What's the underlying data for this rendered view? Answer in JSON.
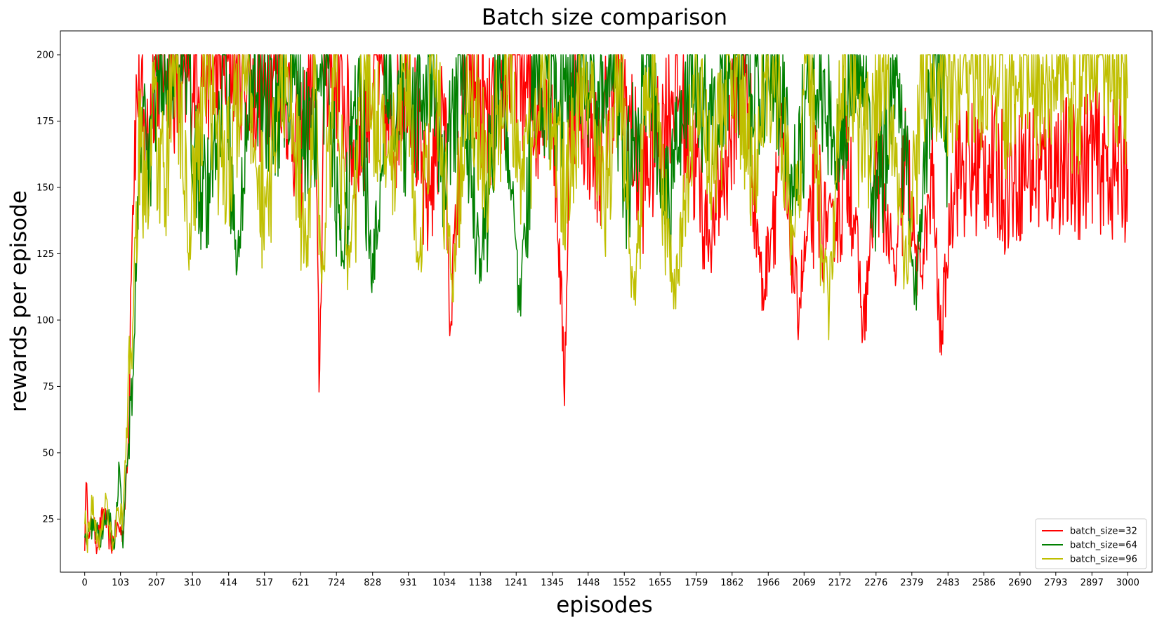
{
  "chart_data": {
    "type": "line",
    "title": "Batch size comparison",
    "xlabel": "episodes",
    "ylabel": "rewards per episode",
    "xlim": [
      -70,
      3070
    ],
    "ylim": [
      5,
      209
    ],
    "x_ticks": [
      0,
      103,
      207,
      310,
      414,
      517,
      621,
      724,
      828,
      931,
      1034,
      1138,
      1241,
      1345,
      1448,
      1552,
      1655,
      1759,
      1862,
      1966,
      2069,
      2172,
      2276,
      2379,
      2483,
      2586,
      2690,
      2793,
      2897,
      3000
    ],
    "y_ticks": [
      25,
      50,
      75,
      100,
      125,
      150,
      175,
      200
    ],
    "grid": false,
    "legend_position": "lower right",
    "legend": [
      "batch_size=32",
      "batch_size=64",
      "batch_size=96"
    ],
    "series": [
      {
        "name": "batch_size=32",
        "color": "#ff0000",
        "points": [
          [
            0,
            17
          ],
          [
            6,
            43
          ],
          [
            12,
            15
          ],
          [
            20,
            26
          ],
          [
            35,
            16
          ],
          [
            55,
            28
          ],
          [
            75,
            15
          ],
          [
            95,
            22
          ],
          [
            110,
            20
          ],
          [
            125,
            50
          ],
          [
            135,
            135
          ],
          [
            145,
            175
          ],
          [
            155,
            190
          ],
          [
            175,
            160
          ],
          [
            200,
            195
          ],
          [
            230,
            200
          ],
          [
            270,
            185
          ],
          [
            330,
            200
          ],
          [
            380,
            190
          ],
          [
            430,
            200
          ],
          [
            500,
            185
          ],
          [
            560,
            200
          ],
          [
            620,
            160
          ],
          [
            660,
            200
          ],
          [
            675,
            74
          ],
          [
            690,
            200
          ],
          [
            740,
            185
          ],
          [
            780,
            160
          ],
          [
            840,
            200
          ],
          [
            880,
            165
          ],
          [
            930,
            200
          ],
          [
            980,
            140
          ],
          [
            1034,
            185
          ],
          [
            1050,
            100
          ],
          [
            1100,
            200
          ],
          [
            1160,
            170
          ],
          [
            1240,
            200
          ],
          [
            1300,
            175
          ],
          [
            1340,
            200
          ],
          [
            1380,
            78
          ],
          [
            1400,
            190
          ],
          [
            1480,
            160
          ],
          [
            1530,
            200
          ],
          [
            1600,
            150
          ],
          [
            1700,
            190
          ],
          [
            1760,
            155
          ],
          [
            1800,
            130
          ],
          [
            1850,
            165
          ],
          [
            1900,
            200
          ],
          [
            1950,
            108
          ],
          [
            2000,
            165
          ],
          [
            2050,
            104
          ],
          [
            2100,
            150
          ],
          [
            2150,
            132
          ],
          [
            2200,
            162
          ],
          [
            2240,
            96
          ],
          [
            2280,
            162
          ],
          [
            2330,
            115
          ],
          [
            2360,
            160
          ],
          [
            2400,
            115
          ],
          [
            2440,
            152
          ],
          [
            2460,
            92
          ],
          [
            2480,
            120
          ],
          [
            2500,
            160
          ],
          [
            2540,
            156
          ],
          [
            2600,
            159
          ],
          [
            2650,
            152
          ],
          [
            2700,
            158
          ],
          [
            2750,
            156
          ],
          [
            2800,
            160
          ],
          [
            2850,
            155
          ],
          [
            2897,
            164
          ],
          [
            2950,
            156
          ],
          [
            3000,
            157
          ]
        ]
      },
      {
        "name": "batch_size=64",
        "color": "#008000",
        "points": [
          [
            0,
            22
          ],
          [
            10,
            17
          ],
          [
            25,
            25
          ],
          [
            45,
            16
          ],
          [
            65,
            30
          ],
          [
            85,
            15
          ],
          [
            100,
            47
          ],
          [
            110,
            17
          ],
          [
            125,
            55
          ],
          [
            140,
            82
          ],
          [
            150,
            130
          ],
          [
            160,
            180
          ],
          [
            180,
            150
          ],
          [
            210,
            185
          ],
          [
            250,
            200
          ],
          [
            300,
            185
          ],
          [
            350,
            140
          ],
          [
            400,
            200
          ],
          [
            440,
            119
          ],
          [
            480,
            200
          ],
          [
            540,
            175
          ],
          [
            600,
            200
          ],
          [
            650,
            160
          ],
          [
            700,
            200
          ],
          [
            740,
            118
          ],
          [
            790,
            200
          ],
          [
            828,
            112
          ],
          [
            870,
            200
          ],
          [
            940,
            165
          ],
          [
            990,
            200
          ],
          [
            1040,
            150
          ],
          [
            1080,
            200
          ],
          [
            1140,
            122
          ],
          [
            1200,
            200
          ],
          [
            1250,
            104
          ],
          [
            1300,
            200
          ],
          [
            1350,
            175
          ],
          [
            1420,
            200
          ],
          [
            1480,
            185
          ],
          [
            1520,
            200
          ],
          [
            1560,
            150
          ],
          [
            1620,
            200
          ],
          [
            1680,
            140
          ],
          [
            1740,
            200
          ],
          [
            1800,
            165
          ],
          [
            1860,
            200
          ],
          [
            1920,
            185
          ],
          [
            1980,
            200
          ],
          [
            2040,
            150
          ],
          [
            2100,
            200
          ],
          [
            2160,
            160
          ],
          [
            2220,
            200
          ],
          [
            2280,
            140
          ],
          [
            2330,
            200
          ],
          [
            2390,
            110
          ],
          [
            2440,
            200
          ],
          [
            2483,
            165
          ]
        ]
      },
      {
        "name": "batch_size=96",
        "color": "#bfbf00",
        "points": [
          [
            0,
            27
          ],
          [
            8,
            17
          ],
          [
            20,
            32
          ],
          [
            40,
            15
          ],
          [
            60,
            33
          ],
          [
            80,
            14
          ],
          [
            95,
            30
          ],
          [
            110,
            24
          ],
          [
            125,
            75
          ],
          [
            140,
            100
          ],
          [
            155,
            165
          ],
          [
            175,
            150
          ],
          [
            200,
            175
          ],
          [
            230,
            145
          ],
          [
            260,
            200
          ],
          [
            300,
            128
          ],
          [
            350,
            200
          ],
          [
            400,
            150
          ],
          [
            460,
            200
          ],
          [
            520,
            135
          ],
          [
            580,
            200
          ],
          [
            640,
            121
          ],
          [
            660,
            200
          ],
          [
            680,
            109
          ],
          [
            720,
            200
          ],
          [
            760,
            116
          ],
          [
            810,
            200
          ],
          [
            870,
            150
          ],
          [
            930,
            200
          ],
          [
            960,
            108
          ],
          [
            1000,
            200
          ],
          [
            1060,
            116
          ],
          [
            1100,
            200
          ],
          [
            1160,
            150
          ],
          [
            1220,
            200
          ],
          [
            1260,
            150
          ],
          [
            1320,
            200
          ],
          [
            1380,
            145
          ],
          [
            1440,
            200
          ],
          [
            1500,
            150
          ],
          [
            1540,
            200
          ],
          [
            1580,
            100
          ],
          [
            1620,
            200
          ],
          [
            1700,
            108
          ],
          [
            1760,
            200
          ],
          [
            1800,
            150
          ],
          [
            1860,
            200
          ],
          [
            1920,
            155
          ],
          [
            1980,
            200
          ],
          [
            2040,
            130
          ],
          [
            2080,
            200
          ],
          [
            2140,
            101
          ],
          [
            2180,
            200
          ],
          [
            2240,
            160
          ],
          [
            2300,
            200
          ],
          [
            2360,
            116
          ],
          [
            2420,
            200
          ],
          [
            2483,
            185
          ],
          [
            2520,
            200
          ],
          [
            2560,
            179
          ],
          [
            2600,
            200
          ],
          [
            2650,
            179
          ],
          [
            2700,
            200
          ],
          [
            2750,
            180
          ],
          [
            2800,
            200
          ],
          [
            2850,
            179
          ],
          [
            2900,
            200
          ],
          [
            2950,
            180
          ],
          [
            2980,
            200
          ],
          [
            3000,
            180
          ]
        ]
      }
    ]
  }
}
